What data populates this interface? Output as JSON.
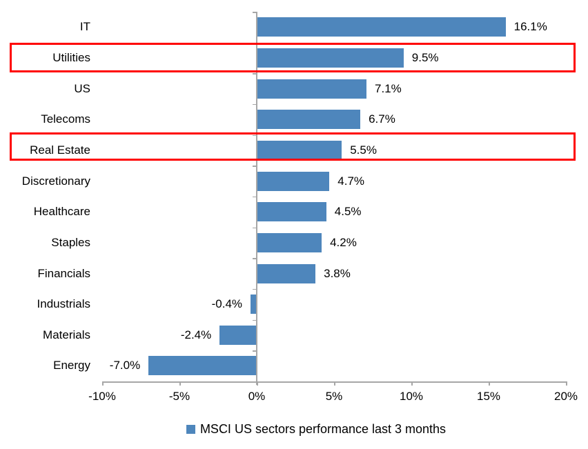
{
  "chart_data": {
    "type": "bar",
    "orientation": "horizontal",
    "categories": [
      "IT",
      "Utilities",
      "US",
      "Telecoms",
      "Real Estate",
      "Discretionary",
      "Healthcare",
      "Staples",
      "Financials",
      "Industrials",
      "Materials",
      "Energy"
    ],
    "values": [
      16.1,
      9.5,
      7.1,
      6.7,
      5.5,
      4.7,
      4.5,
      4.2,
      3.8,
      -0.4,
      -2.4,
      -7.0
    ],
    "value_labels": [
      "16.1%",
      "9.5%",
      "7.1%",
      "6.7%",
      "5.5%",
      "4.7%",
      "4.5%",
      "4.2%",
      "3.8%",
      "-0.4%",
      "-2.4%",
      "-7.0%"
    ],
    "xlim": [
      -10,
      20
    ],
    "x_ticks": [
      "-10%",
      "-5%",
      "0%",
      "5%",
      "10%",
      "15%",
      "20%"
    ],
    "x_tick_values": [
      -10,
      -5,
      0,
      5,
      10,
      15,
      20
    ],
    "grid": false,
    "legend": "MSCI US sectors performance last 3 months",
    "legend_position": "bottom",
    "bar_color": "#4E86BC",
    "axis_color": "#A6A6A6",
    "highlight_color": "#FF0000",
    "highlighted_categories": [
      "Utilities",
      "Real Estate"
    ]
  }
}
